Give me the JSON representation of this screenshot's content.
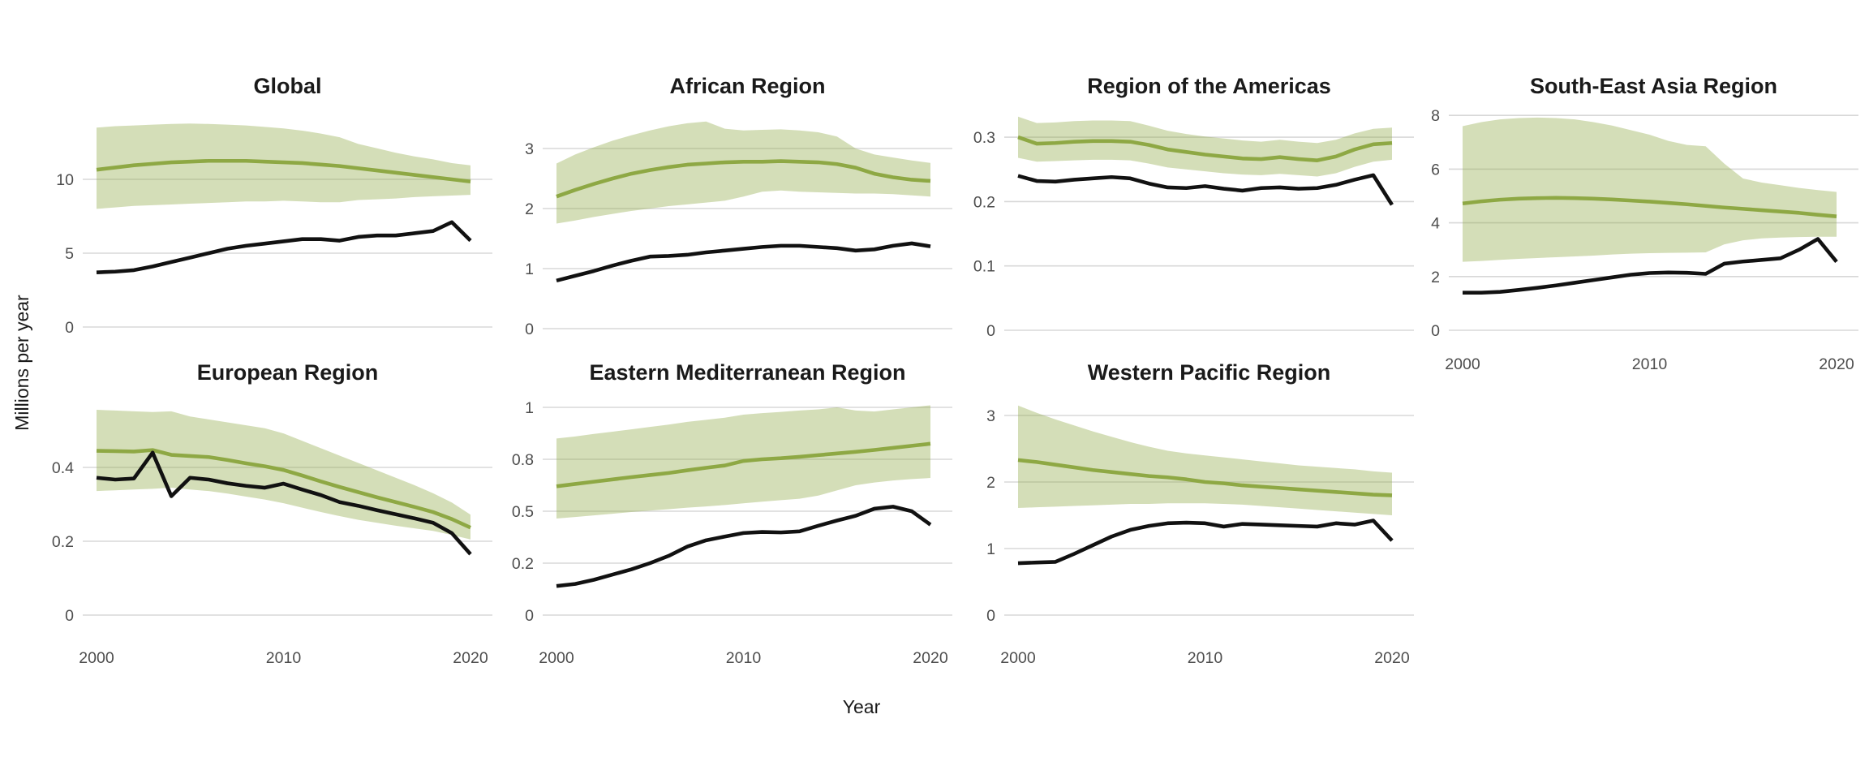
{
  "figure": {
    "y_axis_title": "Millions per year",
    "x_axis_title": "Year",
    "colors": {
      "line_green": "#8EA844",
      "ribbon_green": "#8EA844",
      "line_black": "#111111",
      "gridline": "#D8D8D8",
      "title_text": "#1A1A1A",
      "axis_text": "#4D4D4D"
    }
  },
  "chart_data": {
    "type": "line",
    "title": "Faceted trend charts by WHO region, estimates (green line) with uncertainty band and second (black) series",
    "xlabel": "Year",
    "ylabel": "Millions per year",
    "grid": "horizontal-only",
    "legend": "none",
    "years": [
      2000,
      2001,
      2002,
      2003,
      2004,
      2005,
      2006,
      2007,
      2008,
      2009,
      2010,
      2011,
      2012,
      2013,
      2014,
      2015,
      2016,
      2017,
      2018,
      2019,
      2020
    ],
    "xtick_labels": [
      "2000",
      "2010",
      "2020"
    ],
    "panels": [
      {
        "title": "Global",
        "ylim": [
          0,
          15.0
        ],
        "yticks": {
          "values": [
            0,
            5,
            10
          ],
          "labels": [
            "0",
            "5",
            "10"
          ]
        },
        "xticks_shown": false,
        "band": {
          "name": "confidence-band",
          "upper": [
            13.5,
            13.6,
            13.65,
            13.7,
            13.75,
            13.78,
            13.75,
            13.7,
            13.65,
            13.55,
            13.45,
            13.3,
            13.1,
            12.85,
            12.4,
            12.1,
            11.8,
            11.55,
            11.35,
            11.1,
            10.95
          ],
          "lower": [
            8.0,
            8.1,
            8.2,
            8.25,
            8.3,
            8.35,
            8.4,
            8.45,
            8.5,
            8.5,
            8.55,
            8.5,
            8.45,
            8.45,
            8.6,
            8.65,
            8.7,
            8.8,
            8.85,
            8.9,
            8.95
          ]
        },
        "series": [
          {
            "name": "green-trend-line",
            "color_key": "line_green",
            "values": [
              10.65,
              10.8,
              10.95,
              11.05,
              11.15,
              11.2,
              11.25,
              11.25,
              11.25,
              11.2,
              11.15,
              11.1,
              11.0,
              10.9,
              10.75,
              10.6,
              10.45,
              10.3,
              10.15,
              10.0,
              9.85
            ]
          },
          {
            "name": "black-trend-line",
            "color_key": "line_black",
            "values": [
              3.7,
              3.75,
              3.85,
              4.1,
              4.4,
              4.7,
              5.0,
              5.3,
              5.5,
              5.65,
              5.8,
              5.95,
              5.95,
              5.85,
              6.1,
              6.2,
              6.2,
              6.35,
              6.5,
              7.1,
              5.85
            ]
          }
        ]
      },
      {
        "title": "African Region",
        "ylim": [
          0,
          3.7
        ],
        "yticks": {
          "values": [
            0,
            1,
            2,
            3
          ],
          "labels": [
            "0",
            "1",
            "2",
            "3"
          ]
        },
        "xticks_shown": false,
        "band": {
          "name": "confidence-band",
          "upper": [
            2.75,
            2.9,
            3.02,
            3.13,
            3.22,
            3.3,
            3.37,
            3.42,
            3.45,
            3.33,
            3.3,
            3.31,
            3.32,
            3.3,
            3.27,
            3.2,
            3.0,
            2.9,
            2.85,
            2.8,
            2.76
          ],
          "lower": [
            1.75,
            1.8,
            1.86,
            1.91,
            1.96,
            2.0,
            2.04,
            2.07,
            2.1,
            2.13,
            2.2,
            2.28,
            2.3,
            2.28,
            2.27,
            2.26,
            2.25,
            2.25,
            2.24,
            2.22,
            2.2
          ]
        },
        "series": [
          {
            "name": "green-trend-line",
            "color_key": "line_green",
            "values": [
              2.2,
              2.31,
              2.41,
              2.5,
              2.58,
              2.64,
              2.69,
              2.73,
              2.75,
              2.77,
              2.78,
              2.78,
              2.79,
              2.78,
              2.77,
              2.74,
              2.68,
              2.58,
              2.52,
              2.48,
              2.46
            ]
          },
          {
            "name": "black-trend-line",
            "color_key": "line_black",
            "values": [
              0.8,
              0.88,
              0.96,
              1.05,
              1.13,
              1.2,
              1.21,
              1.23,
              1.27,
              1.3,
              1.33,
              1.36,
              1.38,
              1.38,
              1.36,
              1.34,
              1.3,
              1.32,
              1.38,
              1.42,
              1.37
            ]
          }
        ]
      },
      {
        "title": "Region of the Americas",
        "ylim": [
          0,
          0.35
        ],
        "yticks": {
          "values": [
            0,
            0.1,
            0.2,
            0.3
          ],
          "labels": [
            "0",
            "0.1",
            "0.2",
            "0.3"
          ]
        },
        "xticks_shown": false,
        "band": {
          "name": "confidence-band",
          "upper": [
            0.332,
            0.322,
            0.323,
            0.325,
            0.326,
            0.326,
            0.325,
            0.318,
            0.31,
            0.305,
            0.301,
            0.298,
            0.295,
            0.293,
            0.296,
            0.293,
            0.291,
            0.296,
            0.306,
            0.313,
            0.315
          ],
          "lower": [
            0.268,
            0.262,
            0.263,
            0.264,
            0.265,
            0.265,
            0.264,
            0.259,
            0.253,
            0.25,
            0.247,
            0.244,
            0.242,
            0.241,
            0.243,
            0.241,
            0.239,
            0.244,
            0.254,
            0.262,
            0.265
          ]
        },
        "series": [
          {
            "name": "green-trend-line",
            "color_key": "line_green",
            "values": [
              0.3,
              0.29,
              0.291,
              0.293,
              0.294,
              0.294,
              0.293,
              0.288,
              0.281,
              0.277,
              0.273,
              0.27,
              0.267,
              0.266,
              0.269,
              0.266,
              0.264,
              0.27,
              0.281,
              0.289,
              0.291
            ]
          },
          {
            "name": "black-trend-line",
            "color_key": "line_black",
            "values": [
              0.24,
              0.232,
              0.231,
              0.234,
              0.236,
              0.238,
              0.236,
              0.228,
              0.222,
              0.221,
              0.224,
              0.22,
              0.217,
              0.221,
              0.222,
              0.22,
              0.221,
              0.226,
              0.234,
              0.241,
              0.195
            ]
          }
        ]
      },
      {
        "title": "South-East Asia Region",
        "ylim": [
          0,
          8.35
        ],
        "yticks": {
          "values": [
            0,
            2,
            4,
            6,
            8
          ],
          "labels": [
            "0",
            "2",
            "4",
            "6",
            "8"
          ]
        },
        "xticks_shown": true,
        "band": {
          "name": "confidence-band",
          "upper": [
            7.6,
            7.75,
            7.85,
            7.9,
            7.92,
            7.9,
            7.85,
            7.75,
            7.62,
            7.45,
            7.28,
            7.05,
            6.9,
            6.85,
            6.2,
            5.65,
            5.5,
            5.4,
            5.3,
            5.22,
            5.15
          ],
          "lower": [
            2.55,
            2.58,
            2.62,
            2.66,
            2.69,
            2.72,
            2.75,
            2.78,
            2.82,
            2.85,
            2.87,
            2.88,
            2.89,
            2.9,
            3.2,
            3.35,
            3.42,
            3.45,
            3.47,
            3.48,
            3.48
          ]
        },
        "series": [
          {
            "name": "green-trend-line",
            "color_key": "line_green",
            "values": [
              4.72,
              4.8,
              4.86,
              4.9,
              4.92,
              4.93,
              4.92,
              4.9,
              4.87,
              4.83,
              4.79,
              4.74,
              4.69,
              4.63,
              4.57,
              4.52,
              4.47,
              4.42,
              4.37,
              4.3,
              4.24
            ]
          },
          {
            "name": "black-trend-line",
            "color_key": "line_black",
            "values": [
              1.4,
              1.4,
              1.43,
              1.5,
              1.58,
              1.67,
              1.77,
              1.87,
              1.97,
              2.07,
              2.13,
              2.15,
              2.14,
              2.1,
              2.48,
              2.56,
              2.62,
              2.68,
              3.0,
              3.4,
              2.55
            ]
          }
        ]
      },
      {
        "title": "European Region",
        "ylim": [
          0,
          0.57
        ],
        "yticks": {
          "values": [
            0,
            0.2,
            0.4
          ],
          "labels": [
            "0",
            "0.2",
            "0.4"
          ]
        },
        "xticks_shown": true,
        "band": {
          "name": "confidence-band",
          "upper": [
            0.556,
            0.554,
            0.552,
            0.55,
            0.552,
            0.538,
            0.53,
            0.522,
            0.514,
            0.506,
            0.492,
            0.472,
            0.452,
            0.432,
            0.412,
            0.392,
            0.372,
            0.352,
            0.33,
            0.305,
            0.272
          ],
          "lower": [
            0.336,
            0.338,
            0.34,
            0.342,
            0.345,
            0.34,
            0.336,
            0.329,
            0.321,
            0.313,
            0.303,
            0.291,
            0.279,
            0.268,
            0.258,
            0.25,
            0.242,
            0.235,
            0.228,
            0.217,
            0.205
          ]
        },
        "series": [
          {
            "name": "green-trend-line",
            "color_key": "line_green",
            "values": [
              0.445,
              0.444,
              0.443,
              0.447,
              0.434,
              0.431,
              0.428,
              0.42,
              0.411,
              0.403,
              0.393,
              0.378,
              0.362,
              0.347,
              0.333,
              0.319,
              0.306,
              0.293,
              0.279,
              0.26,
              0.237
            ]
          },
          {
            "name": "black-trend-line",
            "color_key": "line_black",
            "values": [
              0.372,
              0.367,
              0.37,
              0.44,
              0.322,
              0.372,
              0.367,
              0.357,
              0.35,
              0.345,
              0.356,
              0.34,
              0.325,
              0.306,
              0.296,
              0.284,
              0.273,
              0.262,
              0.25,
              0.222,
              0.165
            ]
          }
        ]
      },
      {
        "title": "Eastern Mediterranean Region",
        "ylim": [
          0,
          1.02
        ],
        "yticks": {
          "values": [
            0,
            0.25,
            0.5,
            0.75,
            1
          ],
          "labels": [
            "0",
            "0.2",
            "0.5",
            "0.8",
            "1"
          ]
        },
        "xticks_shown": true,
        "band": {
          "name": "confidence-band",
          "upper": [
            0.85,
            0.86,
            0.872,
            0.883,
            0.894,
            0.906,
            0.917,
            0.93,
            0.94,
            0.95,
            0.965,
            0.972,
            0.978,
            0.985,
            0.99,
            1.0,
            0.985,
            0.98,
            0.99,
            1.0,
            1.01
          ],
          "lower": [
            0.465,
            0.472,
            0.48,
            0.488,
            0.496,
            0.503,
            0.51,
            0.517,
            0.523,
            0.53,
            0.538,
            0.546,
            0.553,
            0.56,
            0.575,
            0.6,
            0.625,
            0.638,
            0.648,
            0.655,
            0.66
          ]
        },
        "series": [
          {
            "name": "green-trend-line",
            "color_key": "line_green",
            "values": [
              0.62,
              0.631,
              0.642,
              0.653,
              0.664,
              0.674,
              0.684,
              0.697,
              0.709,
              0.72,
              0.742,
              0.75,
              0.755,
              0.762,
              0.77,
              0.778,
              0.786,
              0.795,
              0.805,
              0.815,
              0.825
            ]
          },
          {
            "name": "black-trend-line",
            "color_key": "line_black",
            "values": [
              0.14,
              0.15,
              0.17,
              0.195,
              0.22,
              0.25,
              0.285,
              0.33,
              0.36,
              0.378,
              0.395,
              0.4,
              0.398,
              0.403,
              0.43,
              0.455,
              0.478,
              0.512,
              0.522,
              0.5,
              0.435
            ]
          }
        ]
      },
      {
        "title": "Western Pacific Region",
        "ylim": [
          0,
          3.2
        ],
        "yticks": {
          "values": [
            0,
            1,
            2,
            3
          ],
          "labels": [
            "0",
            "1",
            "2",
            "3"
          ]
        },
        "xticks_shown": true,
        "band": {
          "name": "confidence-band",
          "upper": [
            3.15,
            3.04,
            2.94,
            2.85,
            2.76,
            2.68,
            2.6,
            2.53,
            2.47,
            2.43,
            2.4,
            2.37,
            2.34,
            2.31,
            2.28,
            2.25,
            2.23,
            2.21,
            2.19,
            2.16,
            2.14
          ],
          "lower": [
            1.61,
            1.62,
            1.63,
            1.64,
            1.65,
            1.66,
            1.67,
            1.67,
            1.68,
            1.68,
            1.68,
            1.67,
            1.66,
            1.64,
            1.62,
            1.6,
            1.58,
            1.56,
            1.54,
            1.52,
            1.5
          ]
        },
        "series": [
          {
            "name": "green-trend-line",
            "color_key": "line_green",
            "values": [
              2.33,
              2.3,
              2.26,
              2.22,
              2.18,
              2.15,
              2.12,
              2.09,
              2.07,
              2.04,
              2.0,
              1.98,
              1.95,
              1.93,
              1.91,
              1.89,
              1.87,
              1.85,
              1.83,
              1.81,
              1.8
            ]
          },
          {
            "name": "black-trend-line",
            "color_key": "line_black",
            "values": [
              0.78,
              0.79,
              0.8,
              0.92,
              1.05,
              1.18,
              1.28,
              1.34,
              1.38,
              1.39,
              1.38,
              1.33,
              1.37,
              1.36,
              1.35,
              1.34,
              1.33,
              1.38,
              1.36,
              1.42,
              1.12
            ]
          }
        ]
      }
    ]
  }
}
